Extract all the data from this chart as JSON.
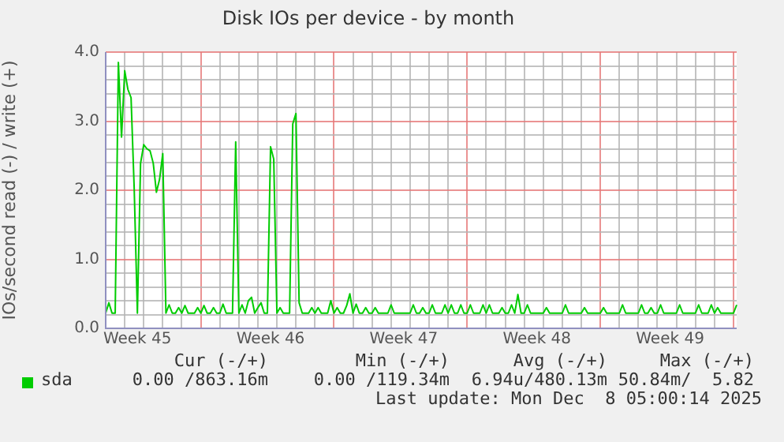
{
  "chart_data": {
    "type": "line",
    "title": "Disk IOs per device - by month",
    "ylabel": "IOs/second read (-) / write (+)",
    "categories": [
      null,
      null,
      null,
      null,
      null,
      null,
      null,
      null,
      null,
      null,
      "Week 45",
      null,
      null,
      null,
      null,
      null,
      null,
      null,
      null,
      null,
      null,
      null,
      null,
      null,
      null,
      null,
      null,
      null,
      null,
      null,
      null,
      null,
      null,
      null,
      null,
      null,
      null,
      null,
      null,
      null,
      null,
      null,
      null,
      null,
      null,
      null,
      null,
      null,
      null,
      null,
      null,
      null,
      "Week 46",
      null,
      null,
      null,
      null,
      null,
      null,
      null,
      null,
      null,
      null,
      null,
      null,
      null,
      null,
      null,
      null,
      null,
      null,
      null,
      null,
      null,
      null,
      null,
      null,
      null,
      null,
      null,
      null,
      null,
      null,
      null,
      null,
      null,
      null,
      null,
      null,
      null,
      null,
      null,
      null,
      null,
      "Week 47",
      null,
      null,
      null,
      null,
      null,
      null,
      null,
      null,
      null,
      null,
      null,
      null,
      null,
      null,
      null,
      null,
      null,
      null,
      null,
      null,
      null,
      null,
      null,
      null,
      null,
      null,
      null,
      null,
      null,
      null,
      null,
      null,
      null,
      null,
      null,
      null,
      null,
      null,
      null,
      null,
      null,
      "Week 48",
      null,
      null,
      null,
      null,
      null,
      null,
      null,
      null,
      null,
      null,
      null,
      null,
      null,
      null,
      null,
      null,
      null,
      null,
      null,
      null,
      null,
      null,
      null,
      null,
      null,
      null,
      null,
      null,
      null,
      null,
      null,
      null,
      null,
      null,
      null,
      null,
      null,
      null,
      null,
      null,
      null,
      "Week 49",
      null,
      null,
      null,
      null,
      null,
      null,
      null,
      null,
      null,
      null,
      null,
      null,
      null,
      null,
      null,
      null,
      null,
      null,
      null,
      null,
      null
    ],
    "series": [
      {
        "name": "sda",
        "color": "#00cc00",
        "values": [
          0.22,
          0.37,
          0.22,
          0.22,
          3.85,
          2.77,
          3.73,
          3.46,
          3.34,
          2.01,
          0.22,
          2.39,
          2.66,
          2.6,
          2.57,
          2.39,
          1.97,
          2.16,
          2.53,
          0.22,
          0.34,
          0.22,
          0.22,
          0.3,
          0.22,
          0.33,
          0.22,
          0.22,
          0.22,
          0.3,
          0.22,
          0.33,
          0.22,
          0.22,
          0.3,
          0.22,
          0.22,
          0.35,
          0.22,
          0.22,
          0.22,
          2.7,
          0.22,
          0.34,
          0.22,
          0.4,
          0.45,
          0.22,
          0.3,
          0.37,
          0.22,
          0.22,
          2.63,
          2.45,
          0.22,
          0.3,
          0.22,
          0.22,
          0.22,
          2.96,
          3.11,
          0.37,
          0.22,
          0.22,
          0.22,
          0.3,
          0.22,
          0.3,
          0.22,
          0.22,
          0.22,
          0.4,
          0.22,
          0.3,
          0.22,
          0.22,
          0.33,
          0.5,
          0.22,
          0.35,
          0.22,
          0.22,
          0.3,
          0.22,
          0.22,
          0.3,
          0.22,
          0.22,
          0.22,
          0.22,
          0.34,
          0.22,
          0.22,
          0.22,
          0.22,
          0.22,
          0.22,
          0.34,
          0.22,
          0.22,
          0.3,
          0.22,
          0.22,
          0.34,
          0.22,
          0.22,
          0.22,
          0.34,
          0.22,
          0.34,
          0.22,
          0.22,
          0.34,
          0.22,
          0.22,
          0.34,
          0.22,
          0.22,
          0.22,
          0.34,
          0.22,
          0.34,
          0.22,
          0.22,
          0.22,
          0.3,
          0.22,
          0.22,
          0.34,
          0.22,
          0.49,
          0.22,
          0.22,
          0.34,
          0.22,
          0.22,
          0.22,
          0.22,
          0.22,
          0.3,
          0.22,
          0.22,
          0.22,
          0.22,
          0.22,
          0.34,
          0.22,
          0.22,
          0.22,
          0.22,
          0.22,
          0.3,
          0.22,
          0.22,
          0.22,
          0.22,
          0.22,
          0.3,
          0.22,
          0.22,
          0.22,
          0.22,
          0.22,
          0.34,
          0.22,
          0.22,
          0.22,
          0.22,
          0.22,
          0.34,
          0.22,
          0.22,
          0.3,
          0.22,
          0.22,
          0.34,
          0.22,
          0.22,
          0.22,
          0.22,
          0.22,
          0.34,
          0.22,
          0.22,
          0.22,
          0.22,
          0.22,
          0.34,
          0.22,
          0.22,
          0.22,
          0.34,
          0.22,
          0.3,
          0.22,
          0.22,
          0.22,
          0.22,
          0.22,
          0.34
        ]
      }
    ],
    "ylim": [
      0,
      4
    ],
    "yticks": [
      {
        "value": 0,
        "label": "0.0"
      },
      {
        "value": 0.2,
        "label": null
      },
      {
        "value": 0.4,
        "label": null
      },
      {
        "value": 0.6,
        "label": null
      },
      {
        "value": 0.8,
        "label": null
      },
      {
        "value": 1,
        "label": "1.0"
      },
      {
        "value": 1.2,
        "label": null
      },
      {
        "value": 1.4,
        "label": null
      },
      {
        "value": 1.6,
        "label": null
      },
      {
        "value": 1.8,
        "label": null
      },
      {
        "value": 2,
        "label": "2.0"
      },
      {
        "value": 2.2,
        "label": null
      },
      {
        "value": 2.4,
        "label": null
      },
      {
        "value": 2.6,
        "label": null
      },
      {
        "value": 2.8,
        "label": null
      },
      {
        "value": 3,
        "label": "3.0"
      },
      {
        "value": 3.2,
        "label": null
      },
      {
        "value": 3.4,
        "label": null
      },
      {
        "value": 3.6,
        "label": null
      },
      {
        "value": 3.8,
        "label": null
      },
      {
        "value": 4,
        "label": "4.0"
      }
    ],
    "grid": true,
    "legend": "bottom",
    "marker": "none",
    "line_style": "solid",
    "annotations": [
      "Cur (-/+)",
      "Min (-/+)",
      "Avg (-/+)",
      "Max (-/+)",
      "0.00 /863.16m",
      "0.00 /119.34m",
      "6.94u/480.13m",
      "50.84m/  5.82",
      "Last update: Mon Dec  8 05:00:14 2025"
    ]
  }
}
